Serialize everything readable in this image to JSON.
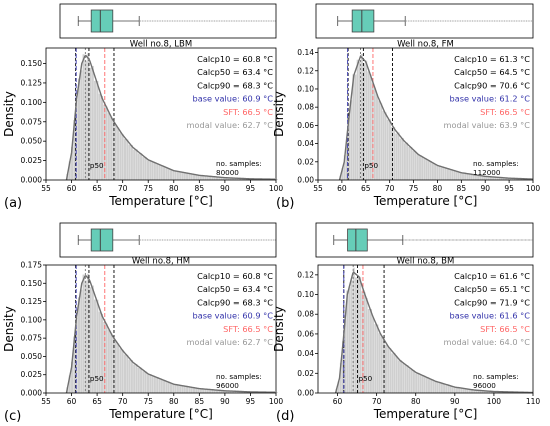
{
  "colors": {
    "box_fill": "#66cdb8",
    "hist_fill": "#cfcfcf",
    "kde_line": "#707070",
    "base": "#3333aa",
    "sft": "#ff6666",
    "modal": "#999999",
    "calc": "#000000",
    "flier": "#8a8a8a"
  },
  "chart_data": [
    {
      "type": "histogram",
      "panel": "(a)",
      "title": "Well no.8, LBM",
      "xlabel": "Temperature [°C]",
      "ylabel": "Density",
      "xlim": [
        55,
        100
      ],
      "xticks": [
        "55",
        "60",
        "65",
        "70",
        "75",
        "80",
        "85",
        "90",
        "95",
        "100"
      ],
      "ylim": [
        0,
        0.17
      ],
      "yticks": [
        "0.000",
        "0.025",
        "0.050",
        "0.075",
        "0.100",
        "0.125",
        "0.150"
      ],
      "kde": {
        "x": [
          59,
          60,
          61,
          62,
          62.7,
          63.5,
          64.5,
          66,
          68,
          70,
          72,
          75,
          80,
          85,
          90,
          95,
          100
        ],
        "y": [
          0,
          0.035,
          0.105,
          0.15,
          0.161,
          0.155,
          0.135,
          0.105,
          0.078,
          0.058,
          0.042,
          0.026,
          0.012,
          0.006,
          0.003,
          0.0015,
          0.001
        ]
      },
      "boxplot": {
        "whisker_low": 58.8,
        "q1": 61.5,
        "median": 63.4,
        "q3": 66.0,
        "whisker_high": 71.5,
        "flier_max": 100
      },
      "lines": {
        "p10": 60.8,
        "p50": 63.4,
        "p90": 68.3,
        "base": 60.9,
        "sft": 66.5,
        "modal": 62.7
      },
      "annotations": {
        "calc_p10": "Calcp10 = 60.8 °C",
        "calc_p50": "Calcp50 = 63.4 °C",
        "calc_p90": "Calcp90 = 68.3 °C",
        "base": "base value: 60.9 °C",
        "sft": "SFT: 66.5 °C",
        "modal": "modal value: 62.7 °C",
        "p50_label": "p50",
        "samples_label": "no. samples:",
        "samples_value": "80000"
      }
    },
    {
      "type": "histogram",
      "panel": "(b)",
      "title": "Well no.8, FM",
      "xlabel": "Temperature [°C]",
      "ylabel": "Density",
      "xlim": [
        55,
        100
      ],
      "xticks": [
        "55",
        "60",
        "65",
        "70",
        "75",
        "80",
        "85",
        "90",
        "95",
        "100"
      ],
      "ylim": [
        0,
        0.145
      ],
      "yticks": [
        "0.00",
        "0.02",
        "0.04",
        "0.06",
        "0.08",
        "0.10",
        "0.12",
        "0.14"
      ],
      "kde": {
        "x": [
          59.5,
          60.5,
          61.5,
          62.5,
          63.9,
          65,
          66,
          67.5,
          69,
          71,
          73,
          76,
          80,
          85,
          90,
          95,
          100
        ],
        "y": [
          0,
          0.02,
          0.07,
          0.115,
          0.136,
          0.13,
          0.115,
          0.092,
          0.074,
          0.056,
          0.043,
          0.028,
          0.016,
          0.008,
          0.004,
          0.002,
          0.001
        ]
      },
      "boxplot": {
        "whisker_low": 59.5,
        "q1": 62.5,
        "median": 64.5,
        "q3": 67.0,
        "whisker_high": 73.5,
        "flier_max": 100
      },
      "lines": {
        "p10": 61.3,
        "p50": 64.5,
        "p90": 70.6,
        "base": 61.2,
        "sft": 66.5,
        "modal": 63.9
      },
      "annotations": {
        "calc_p10": "Calcp10 = 61.3 °C",
        "calc_p50": "Calcp50 = 64.5 °C",
        "calc_p90": "Calcp90 = 70.6 °C",
        "base": "base value: 61.2 °C",
        "sft": "SFT: 66.5 °C",
        "modal": "modal value: 63.9 °C",
        "p50_label": "p50",
        "samples_label": "no. samples:",
        "samples_value": "112000"
      }
    },
    {
      "type": "histogram",
      "panel": "(c)",
      "title": "Well no.8, HM",
      "xlabel": "Temperature [°C]",
      "ylabel": "Density",
      "xlim": [
        55,
        100
      ],
      "xticks": [
        "55",
        "60",
        "65",
        "70",
        "75",
        "80",
        "85",
        "90",
        "95",
        "100"
      ],
      "ylim": [
        0,
        0.175
      ],
      "yticks": [
        "0.000",
        "0.025",
        "0.050",
        "0.075",
        "0.100",
        "0.125",
        "0.150",
        "0.175"
      ],
      "kde": {
        "x": [
          59,
          60,
          61,
          62,
          62.7,
          63.5,
          64.5,
          66,
          68,
          70,
          72,
          75,
          80,
          85,
          90,
          95,
          100
        ],
        "y": [
          0,
          0.035,
          0.105,
          0.15,
          0.161,
          0.155,
          0.135,
          0.105,
          0.078,
          0.058,
          0.042,
          0.026,
          0.012,
          0.006,
          0.003,
          0.0015,
          0.001
        ]
      },
      "boxplot": {
        "whisker_low": 58.8,
        "q1": 61.5,
        "median": 63.4,
        "q3": 66.0,
        "whisker_high": 71.5,
        "flier_max": 100
      },
      "lines": {
        "p10": 60.8,
        "p50": 63.4,
        "p90": 68.3,
        "base": 60.9,
        "sft": 66.5,
        "modal": 62.7
      },
      "annotations": {
        "calc_p10": "Calcp10 = 60.8 °C",
        "calc_p50": "Calcp50 = 63.4 °C",
        "calc_p90": "Calcp90 = 68.3 °C",
        "base": "base value: 60.9 °C",
        "sft": "SFT: 66.5 °C",
        "modal": "modal value: 62.7 °C",
        "p50_label": "p50",
        "samples_label": "no. samples:",
        "samples_value": "96000"
      }
    },
    {
      "type": "histogram",
      "panel": "(d)",
      "title": "Well no.8, BM",
      "xlabel": "Temperature [°C]",
      "ylabel": "Density",
      "xlim": [
        55,
        110
      ],
      "xticks": [
        "60",
        "70",
        "80",
        "90",
        "100",
        "110"
      ],
      "ylim": [
        0,
        0.13
      ],
      "yticks": [
        "0.00",
        "0.02",
        "0.04",
        "0.06",
        "0.08",
        "0.10",
        "0.12"
      ],
      "kde": {
        "x": [
          59.5,
          60.5,
          61.5,
          62.5,
          64,
          65.5,
          67,
          69,
          71,
          73,
          76,
          80,
          85,
          90,
          95,
          100,
          105,
          110
        ],
        "y": [
          0,
          0.015,
          0.055,
          0.1,
          0.123,
          0.118,
          0.1,
          0.078,
          0.06,
          0.047,
          0.033,
          0.021,
          0.012,
          0.006,
          0.003,
          0.0015,
          0.001,
          0.0005
        ]
      },
      "boxplot": {
        "whisker_low": 59.5,
        "q1": 63.0,
        "median": 65.1,
        "q3": 68.0,
        "whisker_high": 77.0,
        "flier_max": 110
      },
      "lines": {
        "p10": 61.6,
        "p50": 65.1,
        "p90": 71.9,
        "base": 61.6,
        "sft": 66.5,
        "modal": 64.0
      },
      "annotations": {
        "calc_p10": "Calcp10 = 61.6 °C",
        "calc_p50": "Calcp50 = 65.1 °C",
        "calc_p90": "Calcp90 = 71.9 °C",
        "base": "base value: 61.6 °C",
        "sft": "SFT: 66.5 °C",
        "modal": "modal value: 64.0 °C",
        "p50_label": "p50",
        "samples_label": "no. samples:",
        "samples_value": "96000"
      }
    }
  ]
}
